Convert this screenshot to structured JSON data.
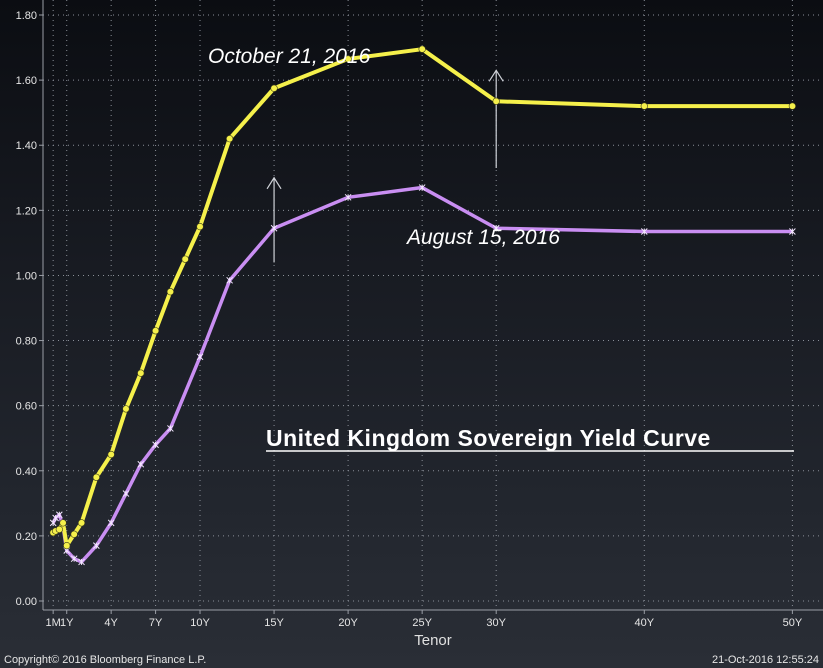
{
  "chart_data": {
    "type": "line",
    "title": "United Kingdom Sovereign Yield Curve",
    "xlabel": "Tenor",
    "ylabel": "",
    "ylim": [
      0,
      1.8
    ],
    "yticks": [
      0.0,
      0.2,
      0.4,
      0.6,
      0.8,
      1.0,
      1.2,
      1.4,
      1.6,
      1.8
    ],
    "ytick_labels": [
      "0.00",
      "0.20",
      "0.40",
      "0.60",
      "0.80",
      "1.00",
      "1.20",
      "1.40",
      "1.60",
      "1.80"
    ],
    "xlim": [
      -0.4,
      52
    ],
    "xticks": [
      0.0833,
      1,
      4,
      7,
      10,
      15,
      20,
      25,
      30,
      40,
      50
    ],
    "xtick_labels": [
      "1M",
      "1Y",
      "4Y",
      "7Y",
      "10Y",
      "15Y",
      "20Y",
      "25Y",
      "30Y",
      "40Y",
      "50Y"
    ],
    "grid": true,
    "series": [
      {
        "name": "October 21, 2016",
        "color": "#f5f04b",
        "marker": "circle",
        "x": [
          0.0833,
          0.25,
          0.5,
          0.75,
          1,
          1.5,
          2,
          3,
          4,
          5,
          6,
          7,
          8,
          9,
          10,
          12,
          15,
          20,
          25,
          30,
          40,
          50
        ],
        "y": [
          0.21,
          0.215,
          0.22,
          0.24,
          0.17,
          0.205,
          0.24,
          0.38,
          0.45,
          0.59,
          0.7,
          0.83,
          0.95,
          1.05,
          1.15,
          1.42,
          1.575,
          1.665,
          1.695,
          1.535,
          1.52,
          1.52
        ]
      },
      {
        "name": "August 15, 2016",
        "color": "#c98ef2",
        "marker": "star",
        "x": [
          0.0833,
          0.25,
          0.5,
          0.75,
          1,
          1.5,
          2,
          3,
          4,
          5,
          6,
          7,
          8,
          10,
          12,
          15,
          20,
          25,
          30,
          40,
          50
        ],
        "y": [
          0.24,
          0.255,
          0.265,
          0.23,
          0.155,
          0.13,
          0.12,
          0.17,
          0.24,
          0.33,
          0.42,
          0.48,
          0.53,
          0.75,
          0.985,
          1.145,
          1.24,
          1.27,
          1.145,
          1.135,
          1.135
        ]
      }
    ],
    "annotations": [
      {
        "text": "October 21, 2016",
        "near_series": "October 21, 2016"
      },
      {
        "text": "August 15, 2016",
        "near_series": "August 15, 2016"
      },
      {
        "text": "arrow-up",
        "from": [
          15,
          1.04
        ],
        "to": [
          15,
          1.3
        ]
      },
      {
        "text": "arrow-up",
        "from": [
          30,
          1.33
        ],
        "to": [
          30,
          1.63
        ]
      }
    ]
  },
  "footer": {
    "copyright": "Copyright© 2016 Bloomberg Finance L.P.",
    "timestamp": "21-Oct-2016 12:55:24"
  }
}
